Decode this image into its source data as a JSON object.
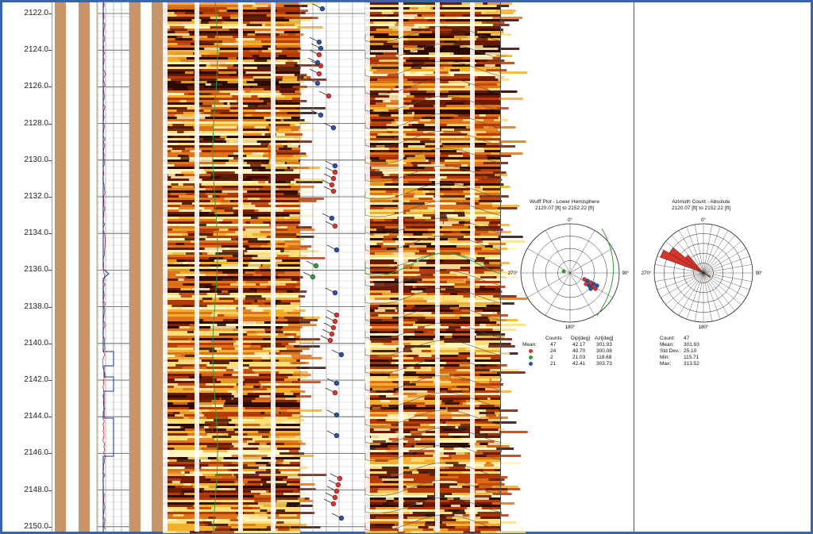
{
  "depth": {
    "unit": "ft",
    "labels": [
      "2122.0",
      "2124.0",
      "2126.0",
      "2128.0",
      "2130.0",
      "2132.0",
      "2134.0",
      "2136.0",
      "2138.0",
      "2140.0",
      "2142.0",
      "2144.0",
      "2146.0",
      "2148.0",
      "2150.0"
    ]
  },
  "wulff": {
    "title": "Wulff Plot - Lower Hemisphere",
    "range": "2120.07 [ft] to 2152.22 [ft]",
    "north": "0°",
    "east": "90°",
    "south": "180°",
    "west": "270°",
    "headers": [
      "Counts",
      "Dip[deg]",
      "Azi[deg]"
    ],
    "mean_label": "Mean:",
    "rows": [
      {
        "color": "",
        "label": "Mean:",
        "counts": "47",
        "dip": "42.17",
        "azi": "301.93"
      },
      {
        "color": "#d9342a",
        "label": "",
        "counts": "24",
        "dip": "40.70",
        "azi": "300.08"
      },
      {
        "color": "#2f9e3a",
        "label": "",
        "counts": "2",
        "dip": "21.03",
        "azi": "118.68"
      },
      {
        "color": "#2e4fa0",
        "label": "",
        "counts": "21",
        "dip": "42.41",
        "azi": "303.73"
      }
    ]
  },
  "rose": {
    "title": "Azimuth Count - Absolute",
    "range": "2120.07 [ft] to 2152.22 [ft]",
    "north": "0°",
    "east": "90°",
    "south": "180°",
    "west": "270°",
    "stats": [
      {
        "label": "Count:",
        "value": "47"
      },
      {
        "label": "Mean:",
        "value": "301.93"
      },
      {
        "label": "Std.Dev.:",
        "value": "25.10"
      },
      {
        "label": "Min:",
        "value": "115.71"
      },
      {
        "label": "Max:",
        "value": "313.52"
      }
    ]
  },
  "colors": {
    "frame": "#3b63a8",
    "caliper_fill": "#c8946a",
    "image_dark": "#2b0a02",
    "image_bright": "#fff5c0",
    "red_dip": "#d9342a",
    "green_dip": "#2f9e3a",
    "blue_dip": "#2e4fa0"
  }
}
